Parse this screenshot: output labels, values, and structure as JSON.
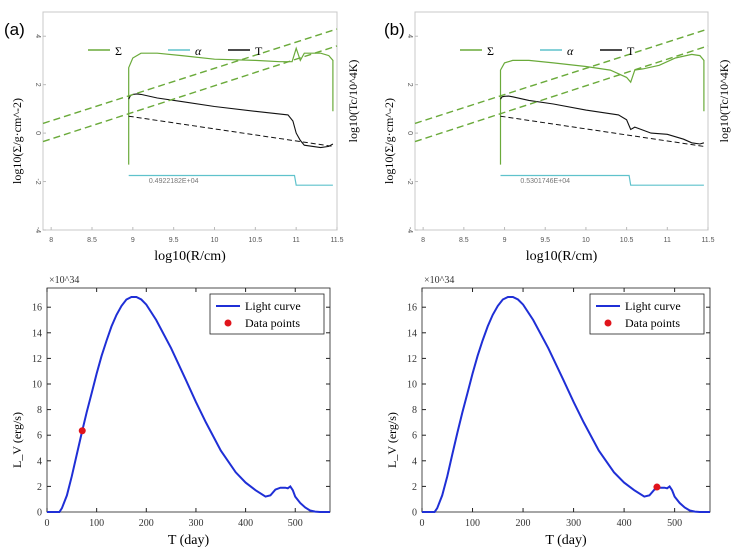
{
  "chart_data": [
    {
      "type": "line",
      "panel_label": "(a)",
      "title": "",
      "xlabel": "log10(R/cm)",
      "ylabel_left": "log10(Σ/g·cm^-2)",
      "ylabel_right": "log10(Tc/10^4K)",
      "xlim": [
        7.9,
        11.5
      ],
      "ylim": [
        -4,
        5
      ],
      "x_ticks": [
        8,
        8.5,
        9,
        9.5,
        10,
        10.5,
        11,
        11.5
      ],
      "x_tick_labels": [
        "8",
        "8.5",
        "9",
        "9.5",
        "10",
        "10.5",
        "11",
        "11.5"
      ],
      "y_ticks": [
        -4,
        -2,
        0,
        2,
        4
      ],
      "y_tick_labels": [
        "-4",
        "-2",
        "0",
        "2",
        "4"
      ],
      "legend": [
        "Σ",
        "α",
        "T"
      ],
      "legend_placement": "top",
      "annotation": "0.4922182E+04",
      "colors": {
        "sigma": "#6aaa3a",
        "alpha": "#5fc2cc",
        "temp": "#111111",
        "dashed_green": "#6aaa3a",
        "dashed_black": "#111111"
      },
      "series": [
        {
          "name": "Σ",
          "style": "solid",
          "x": [
            8.95,
            8.95,
            9.0,
            9.1,
            9.3,
            9.6,
            10.0,
            10.5,
            10.8,
            10.95,
            11.0,
            11.05,
            11.1,
            11.3,
            11.4,
            11.45,
            11.45
          ],
          "y": [
            -1.3,
            2.7,
            3.1,
            3.3,
            3.3,
            3.2,
            3.05,
            3.0,
            2.95,
            2.95,
            3.5,
            3.0,
            3.3,
            3.3,
            3.2,
            3.0,
            0.9
          ]
        },
        {
          "name": "α",
          "style": "solid",
          "x": [
            8.95,
            8.95,
            10.98,
            11.0,
            11.45
          ],
          "y": [
            -1.75,
            -1.75,
            -1.75,
            -2.15,
            -2.15
          ]
        },
        {
          "name": "T",
          "style": "solid",
          "x": [
            8.95,
            8.97,
            9.0,
            9.05,
            9.1,
            9.3,
            9.6,
            10.0,
            10.5,
            10.9,
            10.96,
            11.0,
            11.05,
            11.1,
            11.3,
            11.4,
            11.45
          ],
          "y": [
            1.4,
            1.55,
            1.6,
            1.62,
            1.6,
            1.45,
            1.3,
            1.1,
            0.9,
            0.75,
            0.5,
            0.0,
            -0.3,
            -0.5,
            -0.6,
            -0.55,
            -0.45
          ]
        },
        {
          "name": "upper dashed",
          "style": "dashed",
          "x": [
            7.9,
            11.5
          ],
          "y": [
            0.4,
            4.3
          ]
        },
        {
          "name": "lower dashed",
          "style": "dashed",
          "x": [
            7.9,
            11.5
          ],
          "y": [
            -0.35,
            3.6
          ]
        },
        {
          "name": "Tc dashed",
          "style": "dashed",
          "x": [
            8.95,
            11.45
          ],
          "y": [
            0.7,
            -0.55
          ]
        }
      ]
    },
    {
      "type": "line",
      "panel_label": "(b)",
      "title": "",
      "xlabel": "log10(R/cm)",
      "ylabel_left": "log10(Σ/g·cm^-2)",
      "ylabel_right": "log10(Tc/10^4K)",
      "xlim": [
        7.9,
        11.5
      ],
      "ylim": [
        -4,
        5
      ],
      "x_ticks": [
        8,
        8.5,
        9,
        9.5,
        10,
        10.5,
        11,
        11.5
      ],
      "x_tick_labels": [
        "8",
        "8.5",
        "9",
        "9.5",
        "10",
        "10.5",
        "11",
        "11.5"
      ],
      "y_ticks": [
        -4,
        -2,
        0,
        2,
        4
      ],
      "y_tick_labels": [
        "-4",
        "-2",
        "0",
        "2",
        "4"
      ],
      "legend": [
        "Σ",
        "α",
        "T"
      ],
      "legend_placement": "top",
      "annotation": "0.5301746E+04",
      "colors": {
        "sigma": "#6aaa3a",
        "alpha": "#5fc2cc",
        "temp": "#111111",
        "dashed_green": "#6aaa3a",
        "dashed_black": "#111111"
      },
      "series": [
        {
          "name": "Σ",
          "style": "solid",
          "x": [
            8.95,
            8.95,
            9.0,
            9.1,
            9.3,
            9.6,
            10.0,
            10.3,
            10.5,
            10.55,
            10.6,
            10.7,
            10.9,
            11.1,
            11.3,
            11.4,
            11.45,
            11.45
          ],
          "y": [
            -1.3,
            2.6,
            2.9,
            3.0,
            3.0,
            2.9,
            2.75,
            2.6,
            2.3,
            2.1,
            2.6,
            2.65,
            2.8,
            3.1,
            3.25,
            3.2,
            3.0,
            0.9
          ]
        },
        {
          "name": "α",
          "style": "solid",
          "x": [
            8.95,
            8.95,
            10.53,
            10.55,
            11.45
          ],
          "y": [
            -1.75,
            -1.75,
            -1.75,
            -2.15,
            -2.15
          ]
        },
        {
          "name": "T",
          "style": "solid",
          "x": [
            8.95,
            8.97,
            9.0,
            9.05,
            9.1,
            9.3,
            9.6,
            10.0,
            10.4,
            10.5,
            10.55,
            10.6,
            10.8,
            11.0,
            11.2,
            11.3,
            11.4,
            11.45
          ],
          "y": [
            1.4,
            1.5,
            1.52,
            1.53,
            1.5,
            1.35,
            1.2,
            0.95,
            0.75,
            0.55,
            0.15,
            0.25,
            0.0,
            -0.05,
            -0.25,
            -0.4,
            -0.45,
            -0.4
          ]
        },
        {
          "name": "upper dashed",
          "style": "dashed",
          "x": [
            7.9,
            11.5
          ],
          "y": [
            0.4,
            4.3
          ]
        },
        {
          "name": "lower dashed",
          "style": "dashed",
          "x": [
            7.9,
            11.5
          ],
          "y": [
            -0.35,
            3.6
          ]
        },
        {
          "name": "Tc dashed",
          "style": "dashed",
          "x": [
            8.95,
            11.45
          ],
          "y": [
            0.7,
            -0.55
          ]
        }
      ]
    },
    {
      "type": "line",
      "title": "",
      "xlabel": "T (day)",
      "ylabel": "L_V (erg/s)",
      "y_multiplier": "×10^34",
      "xlim": [
        0,
        570
      ],
      "ylim": [
        0,
        17.5
      ],
      "x_ticks": [
        0,
        100,
        200,
        300,
        400,
        500
      ],
      "x_tick_labels": [
        "0",
        "100",
        "200",
        "300",
        "400",
        "500"
      ],
      "y_ticks": [
        0,
        2,
        4,
        6,
        8,
        10,
        12,
        14,
        16
      ],
      "y_tick_labels": [
        "0",
        "2",
        "4",
        "6",
        "8",
        "10",
        "12",
        "14",
        "16"
      ],
      "grid": false,
      "legend": [
        "Light curve",
        "Data points"
      ],
      "legend_placement": "top-right",
      "series": [
        {
          "name": "Light curve",
          "x": [
            0,
            25,
            30,
            40,
            50,
            60,
            70,
            80,
            90,
            100,
            110,
            120,
            130,
            140,
            150,
            160,
            170,
            180,
            190,
            200,
            220,
            250,
            280,
            300,
            320,
            350,
            380,
            400,
            420,
            440,
            450,
            460,
            470,
            480,
            485,
            490,
            495,
            500,
            510,
            520,
            530,
            540,
            550,
            570
          ],
          "y": [
            0,
            0,
            0.3,
            1.3,
            2.8,
            4.5,
            6.2,
            7.8,
            9.3,
            10.8,
            12.2,
            13.4,
            14.5,
            15.4,
            16.1,
            16.6,
            16.8,
            16.8,
            16.6,
            16.2,
            15.0,
            12.8,
            10.3,
            8.6,
            7.0,
            4.8,
            3.1,
            2.3,
            1.7,
            1.2,
            1.3,
            1.75,
            1.9,
            1.9,
            1.85,
            2.0,
            1.7,
            1.2,
            0.7,
            0.35,
            0.12,
            0.03,
            0,
            0
          ]
        },
        {
          "name": "Data points",
          "x": [
            71
          ],
          "y": [
            6.35
          ]
        }
      ]
    },
    {
      "type": "line",
      "title": "",
      "xlabel": "T (day)",
      "ylabel": "L_V (erg/s)",
      "y_multiplier": "×10^34",
      "xlim": [
        0,
        570
      ],
      "ylim": [
        0,
        17.5
      ],
      "x_ticks": [
        0,
        100,
        200,
        300,
        400,
        500
      ],
      "x_tick_labels": [
        "0",
        "100",
        "200",
        "300",
        "400",
        "500"
      ],
      "y_ticks": [
        0,
        2,
        4,
        6,
        8,
        10,
        12,
        14,
        16
      ],
      "y_tick_labels": [
        "0",
        "2",
        "4",
        "6",
        "8",
        "10",
        "12",
        "14",
        "16"
      ],
      "grid": false,
      "legend": [
        "Light curve",
        "Data points"
      ],
      "legend_placement": "top-right",
      "series": [
        {
          "name": "Light curve",
          "x": [
            0,
            25,
            30,
            40,
            50,
            60,
            70,
            80,
            90,
            100,
            110,
            120,
            130,
            140,
            150,
            160,
            170,
            180,
            190,
            200,
            220,
            250,
            280,
            300,
            320,
            350,
            380,
            400,
            420,
            440,
            450,
            460,
            470,
            480,
            485,
            490,
            495,
            500,
            510,
            520,
            530,
            540,
            550,
            570
          ],
          "y": [
            0,
            0,
            0.3,
            1.3,
            2.8,
            4.5,
            6.2,
            7.8,
            9.3,
            10.8,
            12.2,
            13.4,
            14.5,
            15.4,
            16.1,
            16.6,
            16.8,
            16.8,
            16.6,
            16.2,
            15.0,
            12.8,
            10.3,
            8.6,
            7.0,
            4.8,
            3.1,
            2.3,
            1.7,
            1.2,
            1.3,
            1.75,
            1.9,
            1.9,
            1.85,
            2.0,
            1.7,
            1.2,
            0.7,
            0.35,
            0.12,
            0.03,
            0,
            0
          ]
        },
        {
          "name": "Data points",
          "x": [
            465
          ],
          "y": [
            1.95
          ]
        }
      ]
    }
  ]
}
